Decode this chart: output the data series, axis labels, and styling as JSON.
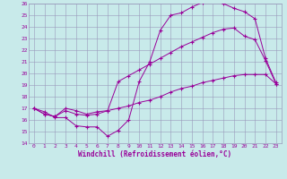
{
  "xlabel": "Windchill (Refroidissement éolien,°C)",
  "xlim": [
    -0.5,
    23.5
  ],
  "ylim": [
    14,
    26
  ],
  "xticks": [
    0,
    1,
    2,
    3,
    4,
    5,
    6,
    7,
    8,
    9,
    10,
    11,
    12,
    13,
    14,
    15,
    16,
    17,
    18,
    19,
    20,
    21,
    22,
    23
  ],
  "yticks": [
    14,
    15,
    16,
    17,
    18,
    19,
    20,
    21,
    22,
    23,
    24,
    25,
    26
  ],
  "line_color": "#990099",
  "bg_color": "#c8eaea",
  "grid_color": "#9999bb",
  "line1_y": [
    17.0,
    16.7,
    16.2,
    16.2,
    15.5,
    15.4,
    15.4,
    14.6,
    15.1,
    16.0,
    19.3,
    21.0,
    23.7,
    25.0,
    25.2,
    25.7,
    26.1,
    26.2,
    26.0,
    25.6,
    25.3,
    24.7,
    21.3,
    19.2
  ],
  "line2_y": [
    17.0,
    16.5,
    16.3,
    16.8,
    16.5,
    16.4,
    16.5,
    16.8,
    17.0,
    17.2,
    17.5,
    17.7,
    18.0,
    18.4,
    18.7,
    18.9,
    19.2,
    19.4,
    19.6,
    19.8,
    19.9,
    19.9,
    19.9,
    19.1
  ],
  "line3_y": [
    17.0,
    16.5,
    16.3,
    17.0,
    16.8,
    16.5,
    16.7,
    16.8,
    19.3,
    19.8,
    20.3,
    20.8,
    21.3,
    21.8,
    22.3,
    22.7,
    23.1,
    23.5,
    23.8,
    23.9,
    23.2,
    22.9,
    21.1,
    19.1
  ]
}
